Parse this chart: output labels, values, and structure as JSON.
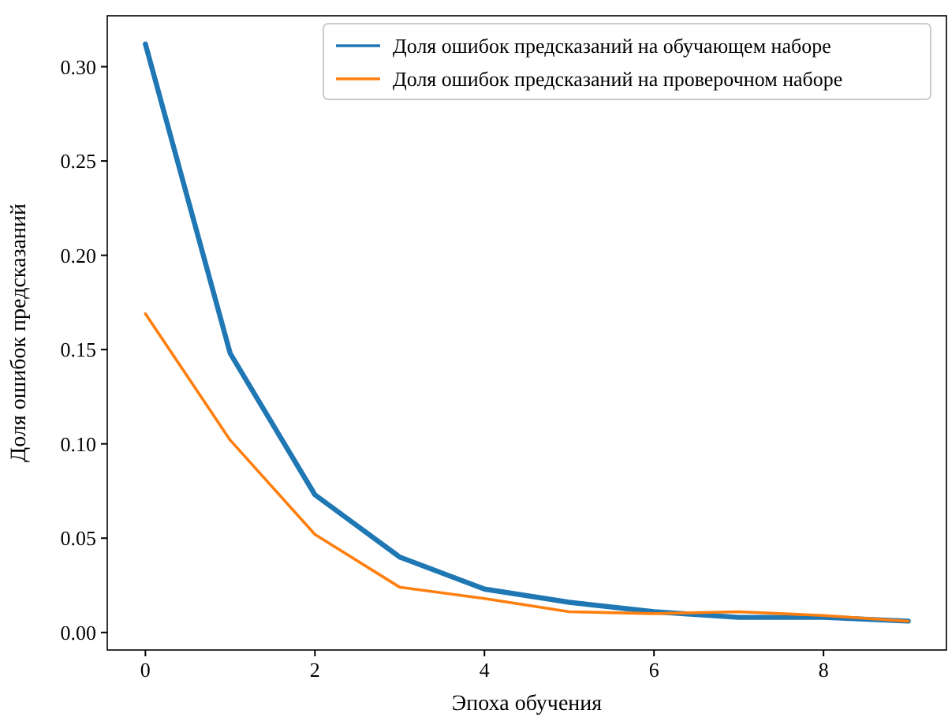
{
  "chart_data": {
    "type": "line",
    "xlabel": "Эпоха обучения",
    "ylabel": "Доля ошибок предсказаний",
    "x": [
      0,
      1,
      2,
      3,
      4,
      5,
      6,
      7,
      8,
      9
    ],
    "series": [
      {
        "name": "Доля ошибок предсказаний на обучающем наборе",
        "color": "#1f77b4",
        "values": [
          0.312,
          0.148,
          0.073,
          0.04,
          0.023,
          0.016,
          0.011,
          0.008,
          0.008,
          0.006
        ]
      },
      {
        "name": "Доля ошибок предсказаний на проверочном наборе",
        "color": "#ff7f0e",
        "values": [
          0.169,
          0.102,
          0.052,
          0.024,
          0.018,
          0.011,
          0.01,
          0.011,
          0.009,
          0.006
        ]
      }
    ],
    "xlim": [
      -0.45,
      9.45
    ],
    "xticks": [
      0,
      2,
      4,
      6,
      8
    ],
    "ylim": [
      -0.0093,
      0.327
    ],
    "yticks": [
      {
        "value": 0,
        "label": "0.00"
      },
      {
        "value": 0.05,
        "label": "0.05"
      },
      {
        "value": 0.1,
        "label": "0.10"
      },
      {
        "value": 0.15,
        "label": "0.15"
      },
      {
        "value": 0.2,
        "label": "0.20"
      },
      {
        "value": 0.25,
        "label": "0.25"
      },
      {
        "value": 0.3,
        "label": "0.30"
      }
    ],
    "legend": "top right",
    "grid": false,
    "marker": "none",
    "line_style": "solid"
  }
}
